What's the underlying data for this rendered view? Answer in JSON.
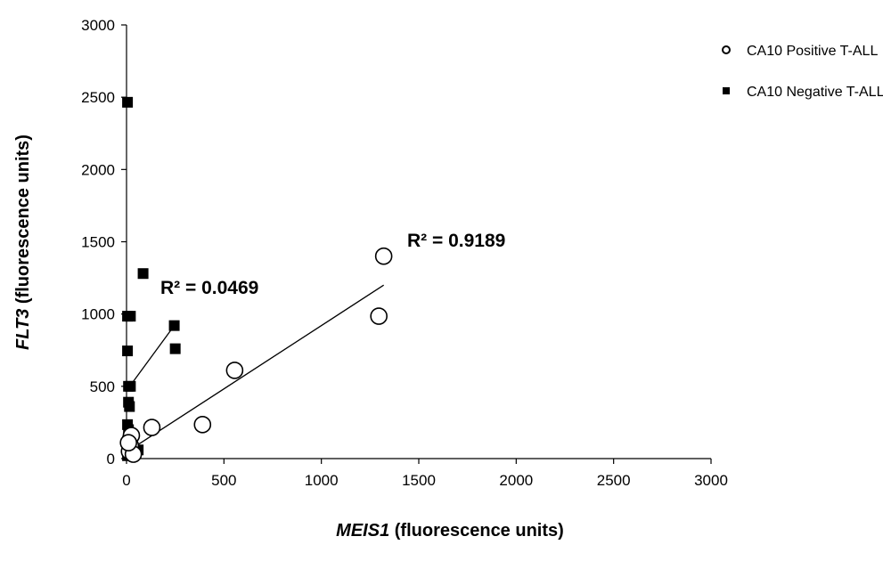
{
  "chart_data": {
    "type": "scatter",
    "xlabel_italic": "MEIS1",
    "xlabel_rest": " (fluorescence units)",
    "ylabel_italic": "FLT3",
    "ylabel_rest": " (fluorescence units)",
    "xlim": [
      0,
      3000
    ],
    "ylim": [
      0,
      3000
    ],
    "xticks": [
      0,
      500,
      1000,
      1500,
      2000,
      2500,
      3000
    ],
    "yticks": [
      0,
      500,
      1000,
      1500,
      2000,
      2500,
      3000
    ],
    "grid": false,
    "legend_position": "top-right",
    "series": [
      {
        "name": "CA10 Positive T-ALL",
        "marker": "open-circle",
        "points": [
          [
            1320,
            1400
          ],
          [
            1295,
            985
          ],
          [
            555,
            610
          ],
          [
            390,
            235
          ],
          [
            130,
            215
          ],
          [
            25,
            160
          ],
          [
            20,
            90
          ],
          [
            15,
            50
          ],
          [
            35,
            30
          ],
          [
            10,
            110
          ]
        ],
        "trendline": {
          "x": [
            0,
            1320
          ],
          "y": [
            45,
            1200
          ]
        },
        "r2_label": "R² = 0.9189"
      },
      {
        "name": "CA10 Negative T-ALL",
        "marker": "filled-square",
        "points": [
          [
            5,
            2465
          ],
          [
            85,
            1280
          ],
          [
            5,
            985
          ],
          [
            20,
            985
          ],
          [
            5,
            745
          ],
          [
            245,
            920
          ],
          [
            250,
            760
          ],
          [
            10,
            500
          ],
          [
            20,
            500
          ],
          [
            10,
            390
          ],
          [
            15,
            360
          ],
          [
            5,
            235
          ],
          [
            10,
            200
          ],
          [
            5,
            120
          ],
          [
            15,
            80
          ],
          [
            60,
            60
          ],
          [
            10,
            40
          ],
          [
            5,
            20
          ]
        ],
        "trendline": {
          "x": [
            0,
            245
          ],
          "y": [
            470,
            920
          ]
        },
        "r2_label": "R² = 0.0469"
      }
    ]
  }
}
